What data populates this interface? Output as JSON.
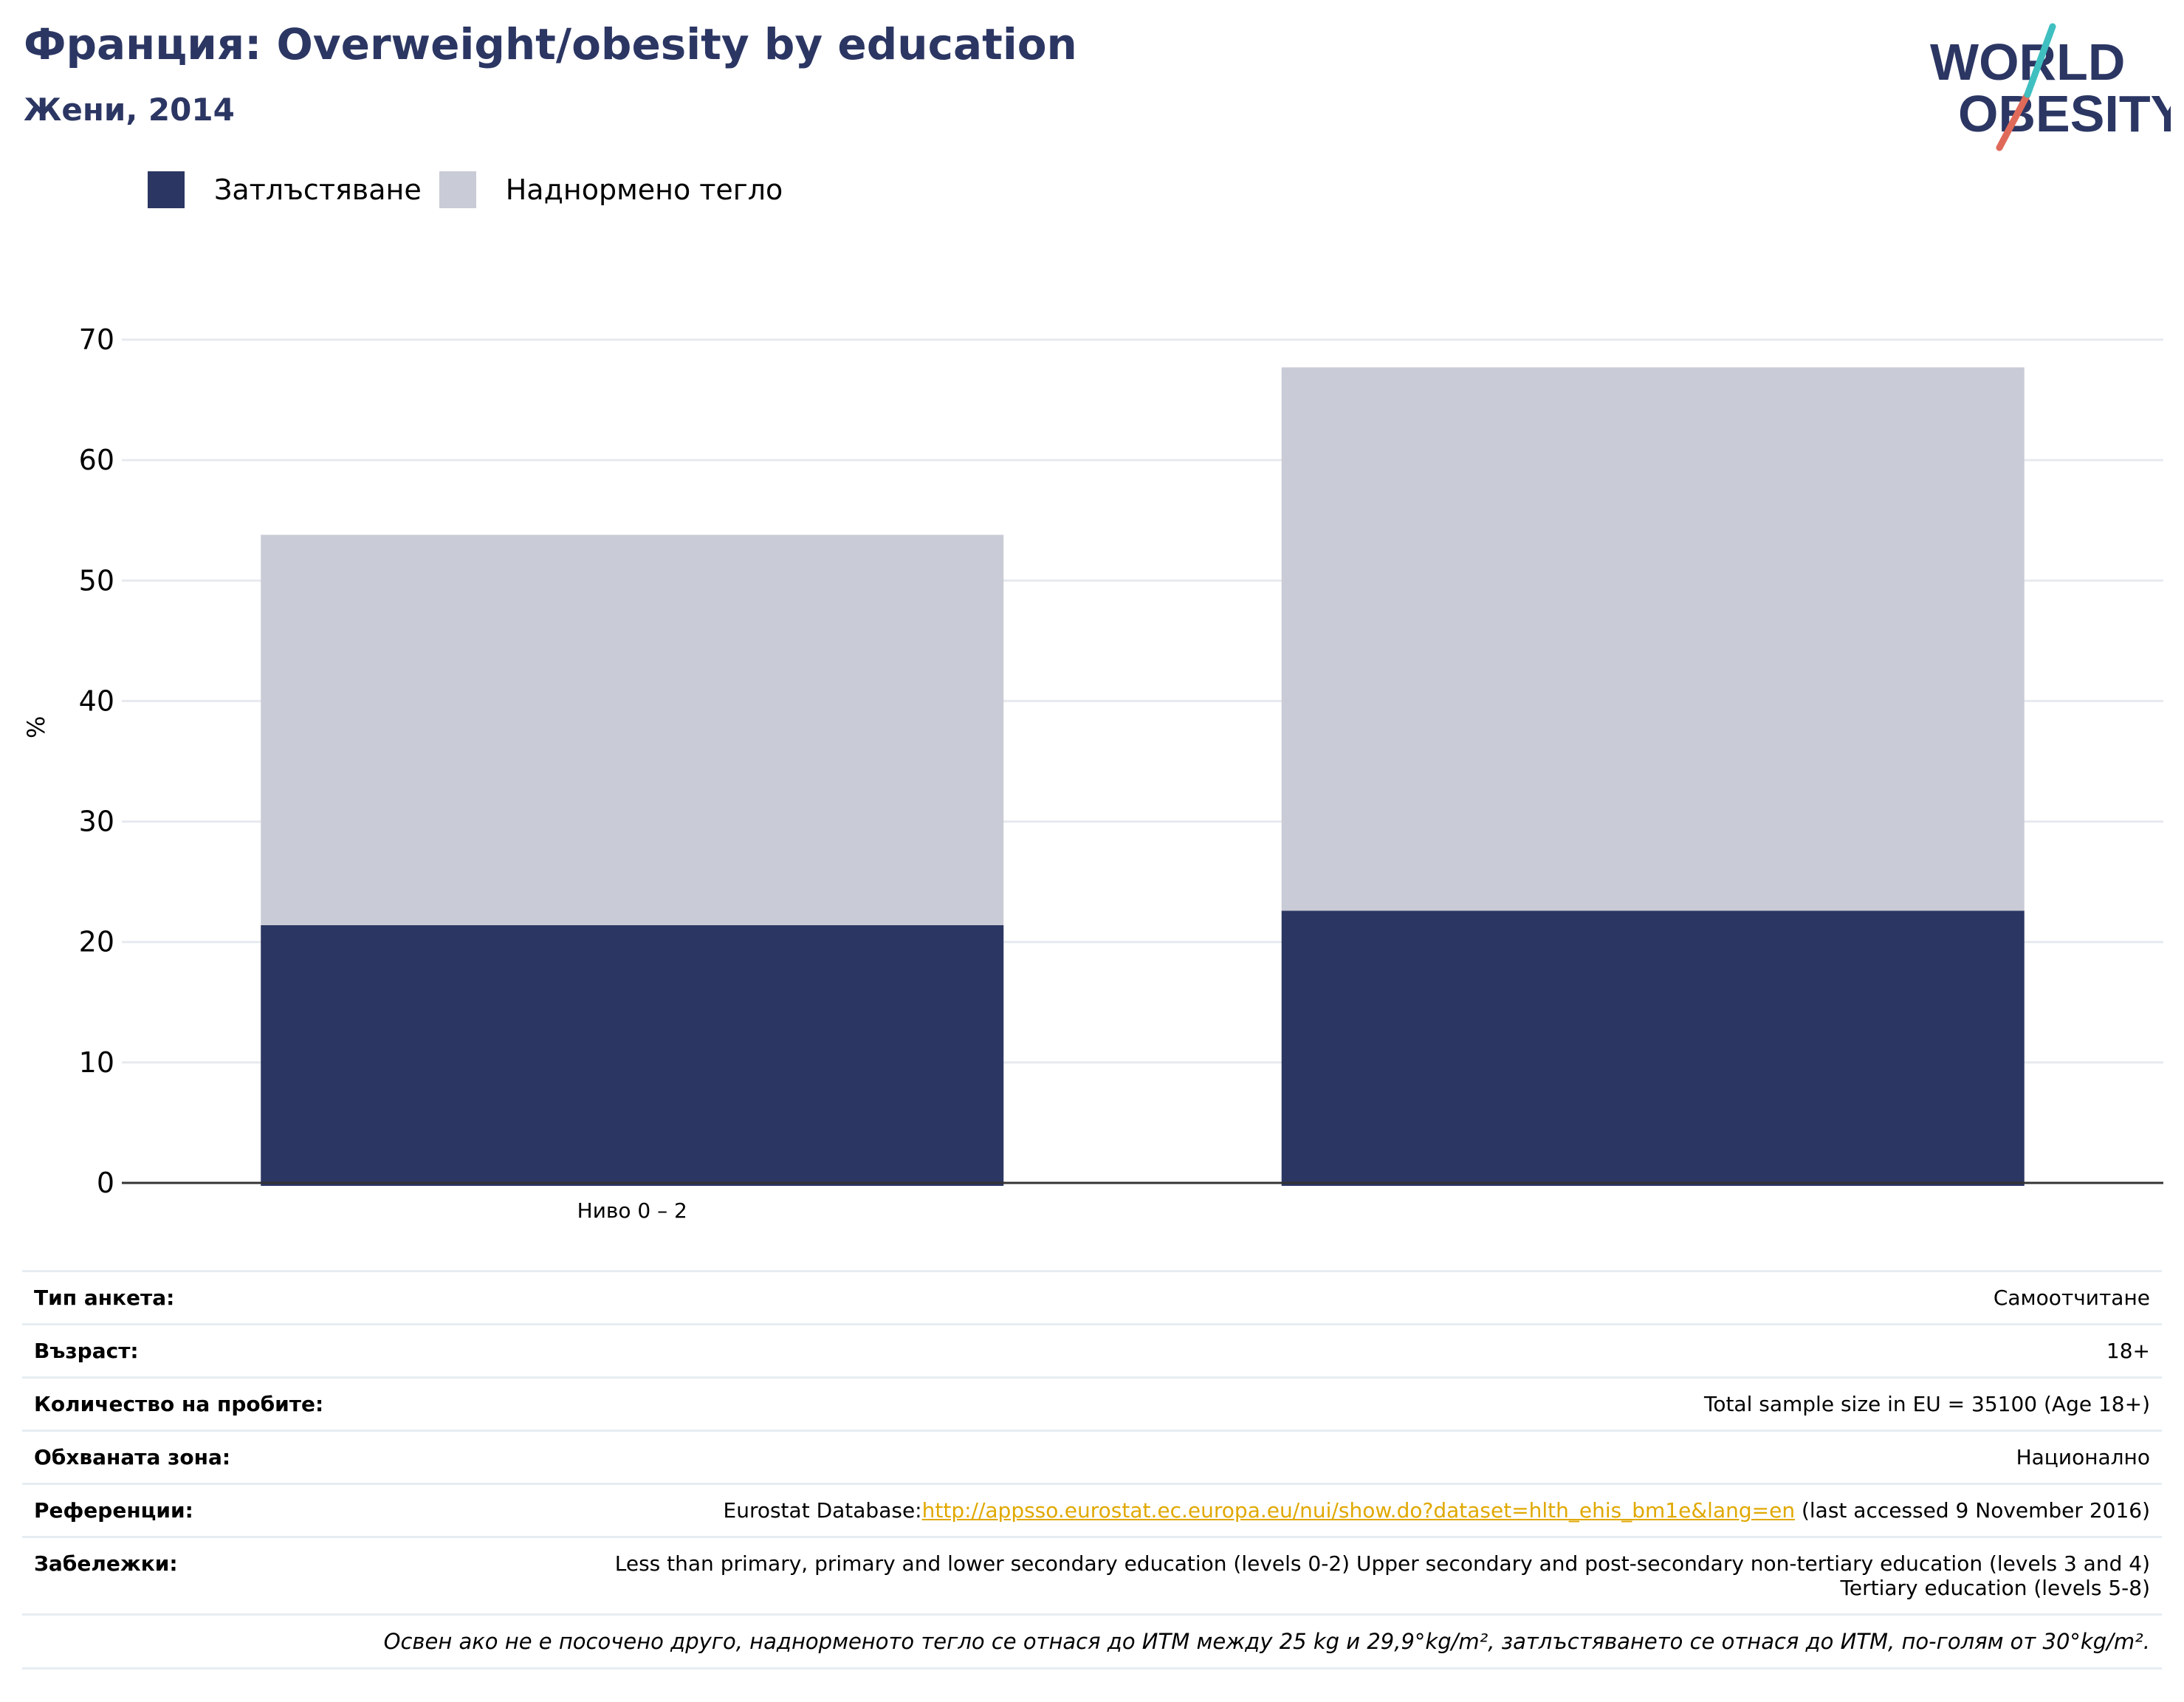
{
  "header": {
    "title": "Франция: Overweight/obesity by education",
    "subtitle": "Жени, 2014"
  },
  "logo": {
    "line1": "WORLD",
    "line2": "OBESITY"
  },
  "colors": {
    "obesity": "#2b3663",
    "overweight": "#c9cbd6",
    "title": "#2b3663",
    "link": "#e0a800"
  },
  "chart_data": {
    "type": "bar",
    "stacked": true,
    "categories": [
      "Ниво 0 – 2",
      ""
    ],
    "series": [
      {
        "name": "Затлъстяване",
        "values": [
          21.4,
          22.6
        ]
      },
      {
        "name": "Наднормено тегло",
        "values": [
          32.4,
          45.1
        ]
      }
    ],
    "ylabel": "%",
    "xlabel": "",
    "ylim": [
      0,
      70
    ],
    "yticks": [
      0,
      10,
      20,
      30,
      40,
      50,
      60,
      70
    ],
    "grid": true,
    "legend_position": "top-left"
  },
  "meta": {
    "rows": [
      {
        "key": "Тип анкета:",
        "value": "Самоотчитане"
      },
      {
        "key": "Възраст:",
        "value": "18+"
      },
      {
        "key": "Количество на пробите:",
        "value": "Total sample size in EU = 35100 (Age 18+)"
      },
      {
        "key": "Обхваната зона:",
        "value": "Национално"
      }
    ],
    "references": {
      "key": "Референции:",
      "prefix": "Eurostat Database:",
      "link": "http://appsso.eurostat.ec.europa.eu/nui/show.do?dataset=hlth_ehis_bm1e&lang=en",
      "suffix": " (last accessed 9 November 2016)"
    },
    "notes": {
      "key": "Забележки:",
      "value": "Less than primary, primary and lower secondary education (levels 0-2) Upper secondary and post-secondary non-tertiary education (levels 3 and 4) Tertiary education (levels 5-8)"
    },
    "footnote": "Освен ако не е посочено друго, наднорменото тегло се отнася до ИТМ между 25 kg и 29,9°kg/m², затлъстяването се отнася до ИТМ, по-голям от 30°kg/m²."
  }
}
